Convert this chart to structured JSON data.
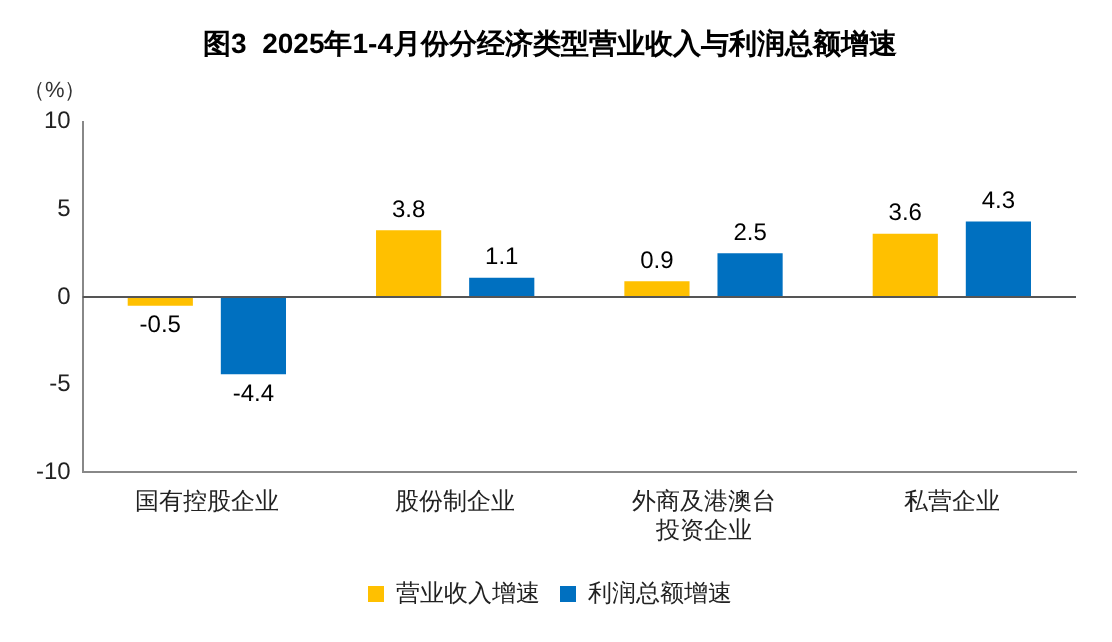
{
  "chart_data": {
    "type": "bar",
    "title": "图3  2025年1-4月份分经济类型营业收入与利润总额增速",
    "ylabel": "（%）",
    "categories": [
      "国有控股企业",
      "股份制企业",
      "外商及港澳台投资企业",
      "私营企业"
    ],
    "series": [
      {
        "name": "营业收入增速",
        "color": "#ffc000",
        "values": [
          -0.5,
          3.8,
          0.9,
          3.6
        ]
      },
      {
        "name": "利润总额增速",
        "color": "#0070c0",
        "values": [
          -4.4,
          1.1,
          2.5,
          4.3
        ]
      }
    ],
    "ylim": [
      -10,
      10
    ],
    "yticks": [
      -10,
      -5,
      0,
      5,
      10
    ],
    "grid": false,
    "ref_lines": [
      {
        "axis": "y",
        "value": 0,
        "color": "#555555"
      }
    ],
    "legend": "bottom",
    "data_labels": true
  }
}
